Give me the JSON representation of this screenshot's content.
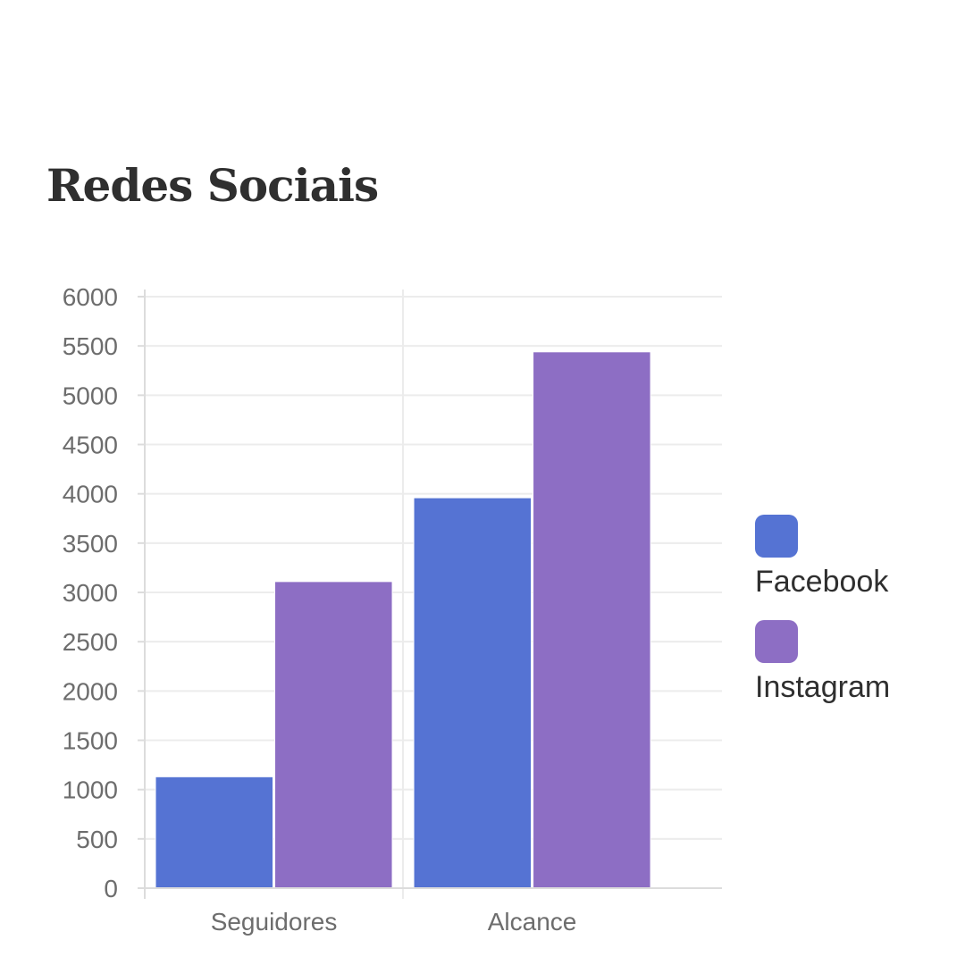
{
  "title": "Redes Sociais",
  "chart_data": {
    "type": "bar",
    "title": "Redes Sociais",
    "categories": [
      "Seguidores",
      "Alcance"
    ],
    "series": [
      {
        "name": "Facebook",
        "color": "#5573d3",
        "values": [
          1130,
          3960
        ]
      },
      {
        "name": "Instagram",
        "color": "#8d6ec4",
        "values": [
          3110,
          5440
        ]
      }
    ],
    "ylim": [
      0,
      6000
    ],
    "yticks": [
      "0",
      "500",
      "1000",
      "1500",
      "2000",
      "2500",
      "3000",
      "3500",
      "4000",
      "4500",
      "5000",
      "5500",
      "6000"
    ],
    "grid": true,
    "legend_position": "right",
    "xlabel": "",
    "ylabel": ""
  }
}
